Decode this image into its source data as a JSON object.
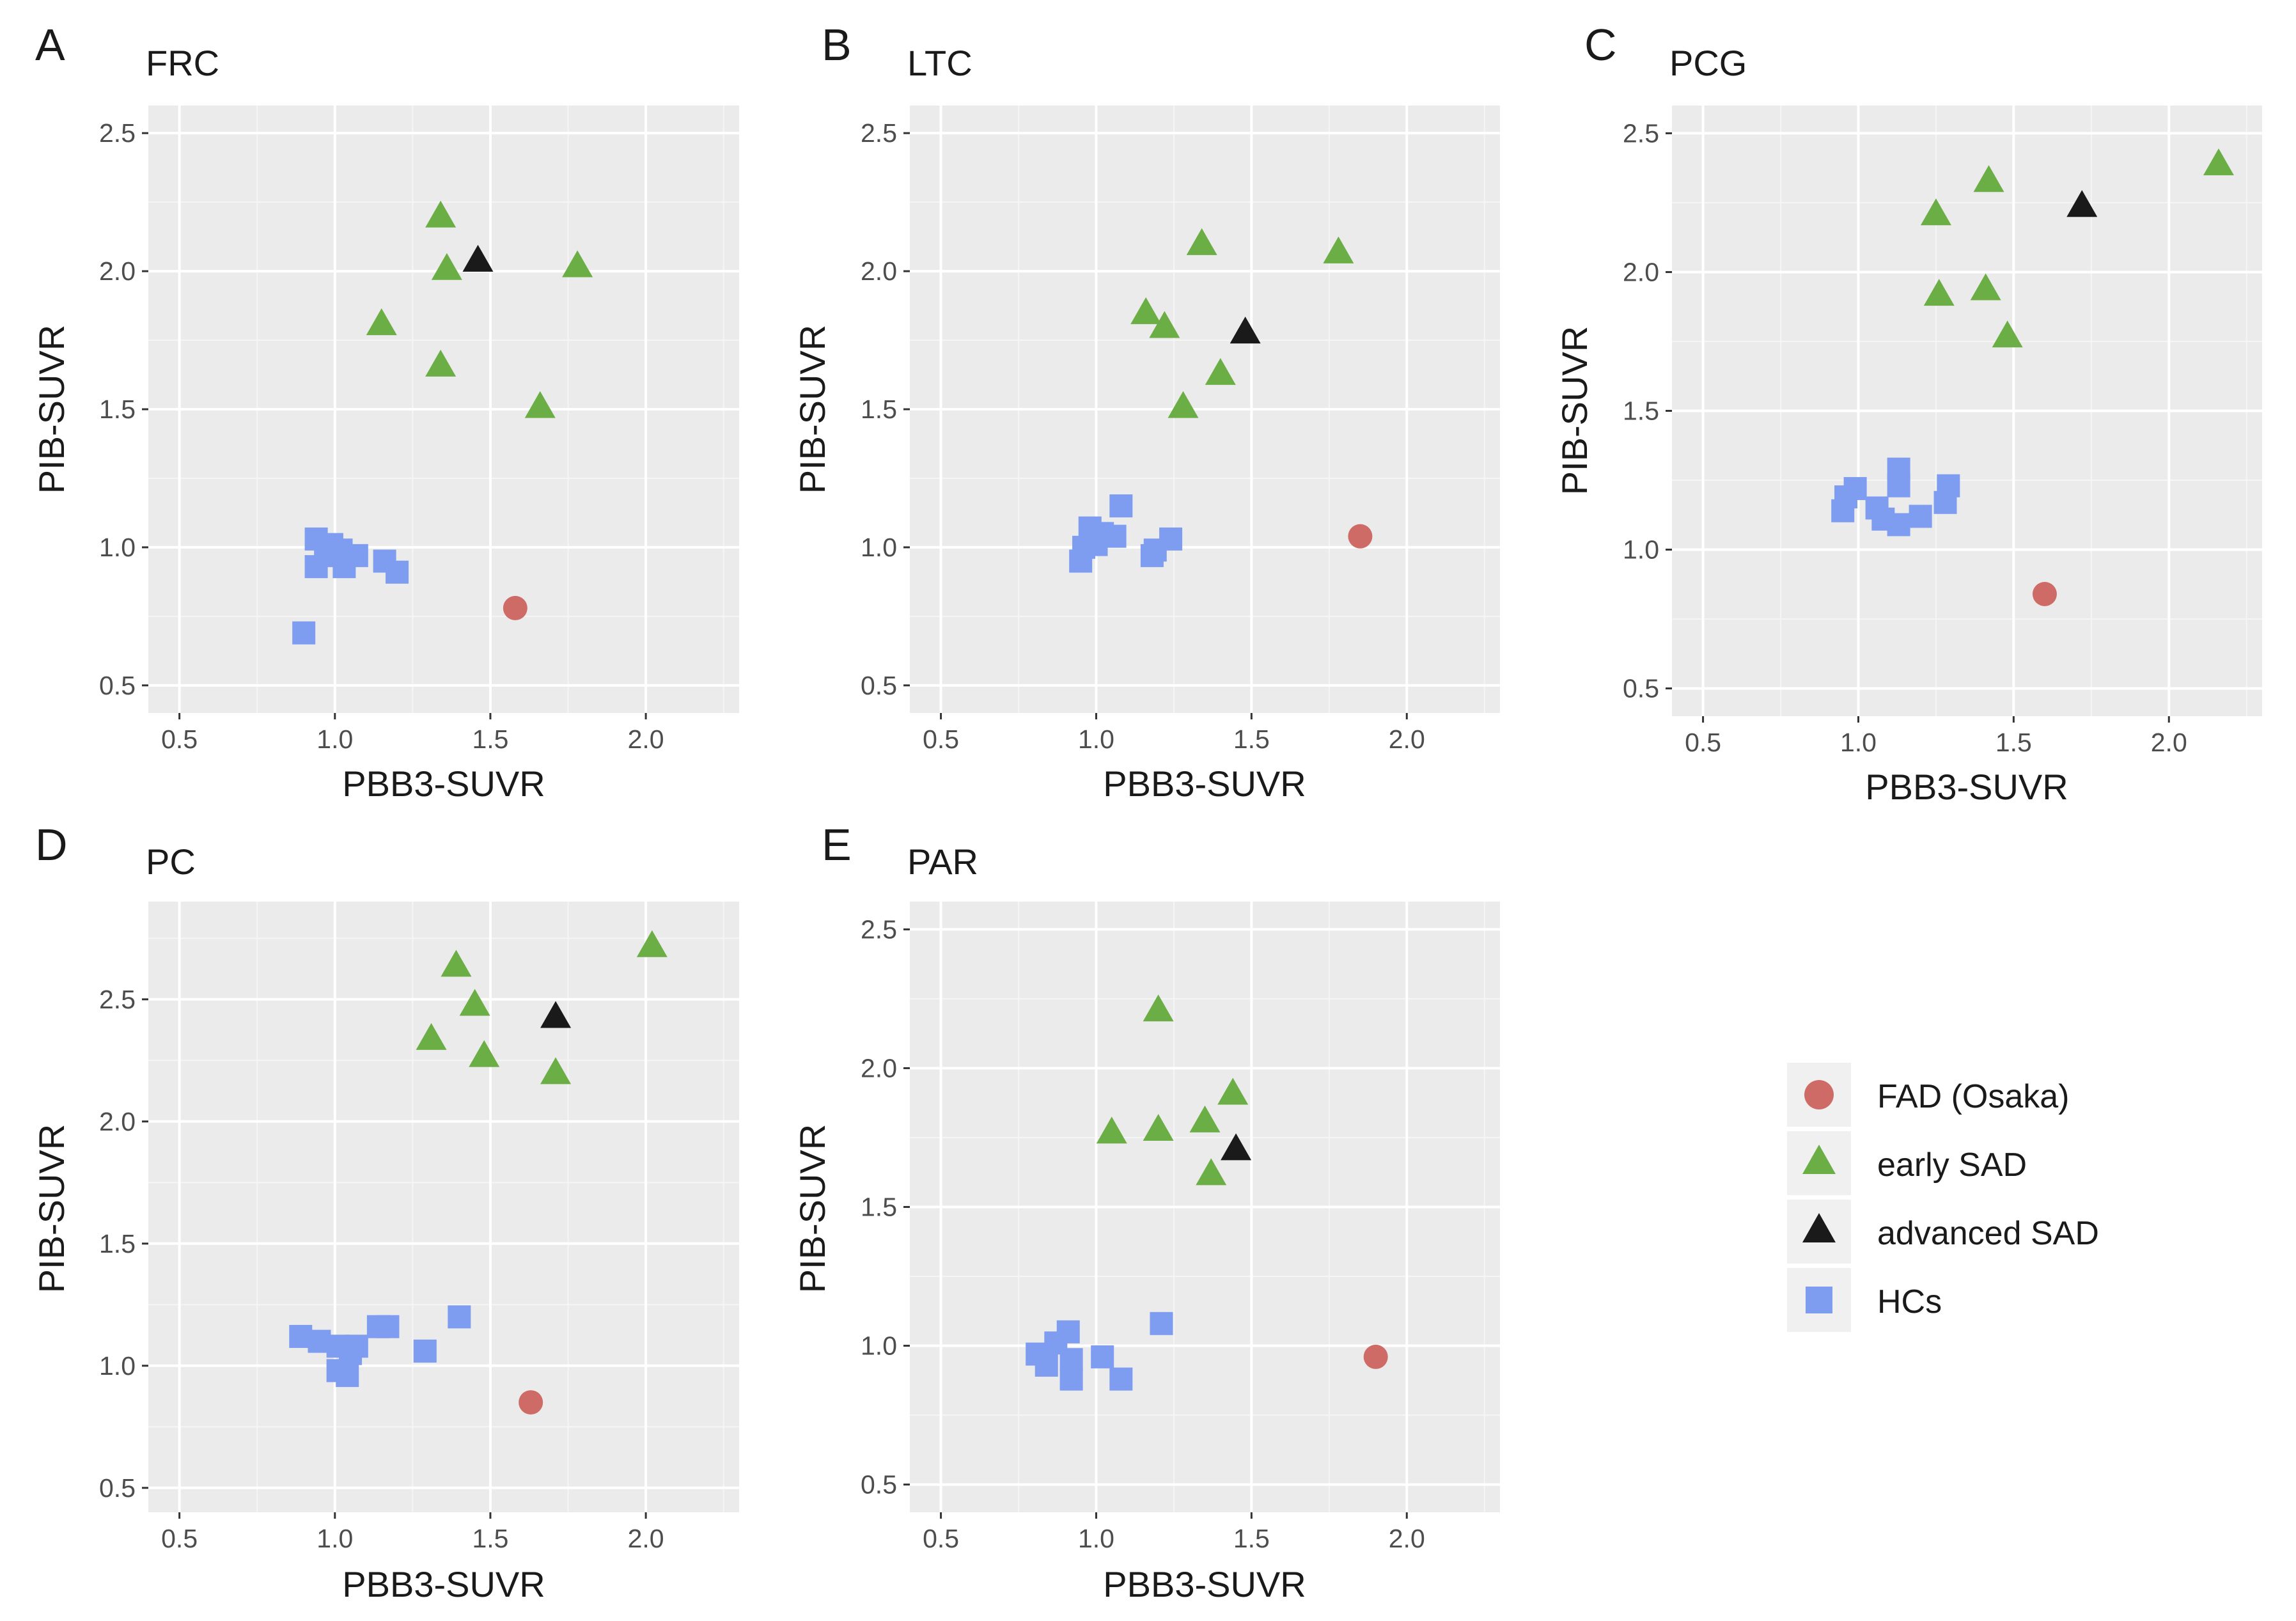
{
  "figure": {
    "colors": {
      "panel_bg": "#ebebeb",
      "grid_major": "#ffffff",
      "grid_minor": "#f5f5f5",
      "tick_text": "#4d4d4d",
      "axis_text": "#1a1a1a"
    }
  },
  "legend": {
    "items": [
      {
        "key": "fad",
        "label": "FAD (Osaka)",
        "shape": "circle",
        "color": "#cf6b66"
      },
      {
        "key": "early",
        "label": "early SAD",
        "shape": "triangle",
        "color": "#6cae46"
      },
      {
        "key": "advanced",
        "label": "advanced SAD",
        "shape": "triangle",
        "color": "#1a1a1a"
      },
      {
        "key": "hc",
        "label": "HCs",
        "shape": "square",
        "color": "#7f9df0"
      }
    ]
  },
  "chart_data": [
    {
      "type": "scatter",
      "letter": "A",
      "title": "FRC",
      "xlabel": "PBB3-SUVR",
      "ylabel": "PIB-SUVR",
      "xlim": [
        0.4,
        2.3
      ],
      "ylim": [
        0.4,
        2.6
      ],
      "xticks": [
        0.5,
        1.0,
        1.5,
        2.0
      ],
      "yticks": [
        0.5,
        1.0,
        1.5,
        2.0,
        2.5
      ],
      "xtick_labels": [
        "0.5",
        "1.0",
        "1.5",
        "2.0"
      ],
      "ytick_labels": [
        "0.5",
        "1.0",
        "1.5",
        "2.0",
        "2.5"
      ],
      "series": [
        {
          "key": "fad",
          "name": "FAD (Osaka)",
          "points": [
            [
              1.58,
              0.78
            ]
          ]
        },
        {
          "key": "early",
          "name": "early SAD",
          "points": [
            [
              1.34,
              2.2
            ],
            [
              1.36,
              2.01
            ],
            [
              1.78,
              2.02
            ],
            [
              1.15,
              1.81
            ],
            [
              1.34,
              1.66
            ],
            [
              1.66,
              1.51
            ]
          ]
        },
        {
          "key": "advanced",
          "name": "advanced SAD",
          "points": [
            [
              1.46,
              2.04
            ]
          ]
        },
        {
          "key": "hc",
          "name": "HCs",
          "points": [
            [
              0.94,
              1.03
            ],
            [
              0.99,
              1.01
            ],
            [
              1.02,
              0.99
            ],
            [
              0.97,
              0.97
            ],
            [
              1.07,
              0.97
            ],
            [
              0.94,
              0.93
            ],
            [
              1.03,
              0.93
            ],
            [
              1.16,
              0.95
            ],
            [
              1.2,
              0.91
            ],
            [
              0.9,
              0.69
            ]
          ]
        }
      ]
    },
    {
      "type": "scatter",
      "letter": "B",
      "title": "LTC",
      "xlabel": "PBB3-SUVR",
      "ylabel": "PIB-SUVR",
      "xlim": [
        0.4,
        2.3
      ],
      "ylim": [
        0.4,
        2.6
      ],
      "xticks": [
        0.5,
        1.0,
        1.5,
        2.0
      ],
      "yticks": [
        0.5,
        1.0,
        1.5,
        2.0,
        2.5
      ],
      "xtick_labels": [
        "0.5",
        "1.0",
        "1.5",
        "2.0"
      ],
      "ytick_labels": [
        "0.5",
        "1.0",
        "1.5",
        "2.0",
        "2.5"
      ],
      "series": [
        {
          "key": "fad",
          "name": "FAD (Osaka)",
          "points": [
            [
              1.85,
              1.04
            ]
          ]
        },
        {
          "key": "early",
          "name": "early SAD",
          "points": [
            [
              1.34,
              2.1
            ],
            [
              1.78,
              2.07
            ],
            [
              1.16,
              1.85
            ],
            [
              1.22,
              1.8
            ],
            [
              1.4,
              1.63
            ],
            [
              1.28,
              1.51
            ]
          ]
        },
        {
          "key": "advanced",
          "name": "advanced SAD",
          "points": [
            [
              1.48,
              1.78
            ]
          ]
        },
        {
          "key": "hc",
          "name": "HCs",
          "points": [
            [
              1.08,
              1.15
            ],
            [
              0.98,
              1.07
            ],
            [
              1.02,
              1.05
            ],
            [
              1.06,
              1.04
            ],
            [
              1.24,
              1.03
            ],
            [
              0.96,
              1.0
            ],
            [
              1.0,
              1.01
            ],
            [
              1.19,
              0.99
            ],
            [
              1.18,
              0.97
            ],
            [
              0.95,
              0.95
            ]
          ]
        }
      ]
    },
    {
      "type": "scatter",
      "letter": "C",
      "title": "PCG",
      "xlabel": "PBB3-SUVR",
      "ylabel": "PIB-SUVR",
      "xlim": [
        0.4,
        2.3
      ],
      "ylim": [
        0.4,
        2.6
      ],
      "xticks": [
        0.5,
        1.0,
        1.5,
        2.0
      ],
      "yticks": [
        0.5,
        1.0,
        1.5,
        2.0,
        2.5
      ],
      "xtick_labels": [
        "0.5",
        "1.0",
        "1.5",
        "2.0"
      ],
      "ytick_labels": [
        "0.5",
        "1.0",
        "1.5",
        "2.0",
        "2.5"
      ],
      "series": [
        {
          "key": "fad",
          "name": "FAD (Osaka)",
          "points": [
            [
              1.6,
              0.84
            ]
          ]
        },
        {
          "key": "early",
          "name": "early SAD",
          "points": [
            [
              2.16,
              2.39
            ],
            [
              1.42,
              2.33
            ],
            [
              1.25,
              2.21
            ],
            [
              1.26,
              1.92
            ],
            [
              1.41,
              1.94
            ],
            [
              1.48,
              1.77
            ]
          ]
        },
        {
          "key": "advanced",
          "name": "advanced SAD",
          "points": [
            [
              1.72,
              2.24
            ]
          ]
        },
        {
          "key": "hc",
          "name": "HCs",
          "points": [
            [
              1.13,
              1.29
            ],
            [
              1.13,
              1.23
            ],
            [
              1.29,
              1.23
            ],
            [
              0.99,
              1.22
            ],
            [
              0.96,
              1.19
            ],
            [
              1.06,
              1.15
            ],
            [
              1.28,
              1.17
            ],
            [
              0.95,
              1.14
            ],
            [
              1.2,
              1.12
            ],
            [
              1.08,
              1.11
            ],
            [
              1.13,
              1.09
            ]
          ]
        }
      ]
    },
    {
      "type": "scatter",
      "letter": "D",
      "title": "PC",
      "xlabel": "PBB3-SUVR",
      "ylabel": "PIB-SUVR",
      "xlim": [
        0.4,
        2.3
      ],
      "ylim": [
        0.4,
        2.9
      ],
      "xticks": [
        0.5,
        1.0,
        1.5,
        2.0
      ],
      "yticks": [
        0.5,
        1.0,
        1.5,
        2.0,
        2.5
      ],
      "xtick_labels": [
        "0.5",
        "1.0",
        "1.5",
        "2.0"
      ],
      "ytick_labels": [
        "0.5",
        "1.0",
        "1.5",
        "2.0",
        "2.5"
      ],
      "series": [
        {
          "key": "fad",
          "name": "FAD (Osaka)",
          "points": [
            [
              1.63,
              0.85
            ]
          ]
        },
        {
          "key": "early",
          "name": "early SAD",
          "points": [
            [
              2.02,
              2.72
            ],
            [
              1.39,
              2.64
            ],
            [
              1.45,
              2.48
            ],
            [
              1.31,
              2.34
            ],
            [
              1.48,
              2.27
            ],
            [
              1.71,
              2.2
            ]
          ]
        },
        {
          "key": "advanced",
          "name": "advanced SAD",
          "points": [
            [
              1.71,
              2.43
            ]
          ]
        },
        {
          "key": "hc",
          "name": "HCs",
          "points": [
            [
              1.4,
              1.2
            ],
            [
              0.89,
              1.12
            ],
            [
              0.95,
              1.1
            ],
            [
              1.01,
              1.08
            ],
            [
              1.14,
              1.16
            ],
            [
              1.17,
              1.16
            ],
            [
              1.07,
              1.08
            ],
            [
              1.05,
              1.05
            ],
            [
              1.29,
              1.06
            ],
            [
              1.01,
              0.98
            ],
            [
              1.04,
              0.96
            ]
          ]
        }
      ]
    },
    {
      "type": "scatter",
      "letter": "E",
      "title": "PAR",
      "xlabel": "PBB3-SUVR",
      "ylabel": "PIB-SUVR",
      "xlim": [
        0.4,
        2.3
      ],
      "ylim": [
        0.4,
        2.6
      ],
      "xticks": [
        0.5,
        1.0,
        1.5,
        2.0
      ],
      "yticks": [
        0.5,
        1.0,
        1.5,
        2.0,
        2.5
      ],
      "xtick_labels": [
        "0.5",
        "1.0",
        "1.5",
        "2.0"
      ],
      "ytick_labels": [
        "0.5",
        "1.0",
        "1.5",
        "2.0",
        "2.5"
      ],
      "series": [
        {
          "key": "fad",
          "name": "FAD (Osaka)",
          "points": [
            [
              1.9,
              0.96
            ]
          ]
        },
        {
          "key": "early",
          "name": "early SAD",
          "points": [
            [
              1.2,
              2.21
            ],
            [
              1.44,
              1.91
            ],
            [
              1.05,
              1.77
            ],
            [
              1.2,
              1.78
            ],
            [
              1.35,
              1.81
            ],
            [
              1.37,
              1.62
            ]
          ]
        },
        {
          "key": "advanced",
          "name": "advanced SAD",
          "points": [
            [
              1.45,
              1.71
            ]
          ]
        },
        {
          "key": "hc",
          "name": "HCs",
          "points": [
            [
              0.91,
              1.05
            ],
            [
              0.87,
              1.01
            ],
            [
              0.81,
              0.97
            ],
            [
              0.92,
              0.95
            ],
            [
              0.84,
              0.93
            ],
            [
              1.02,
              0.96
            ],
            [
              1.21,
              1.08
            ],
            [
              0.92,
              0.88
            ],
            [
              1.08,
              0.88
            ]
          ]
        }
      ]
    }
  ]
}
